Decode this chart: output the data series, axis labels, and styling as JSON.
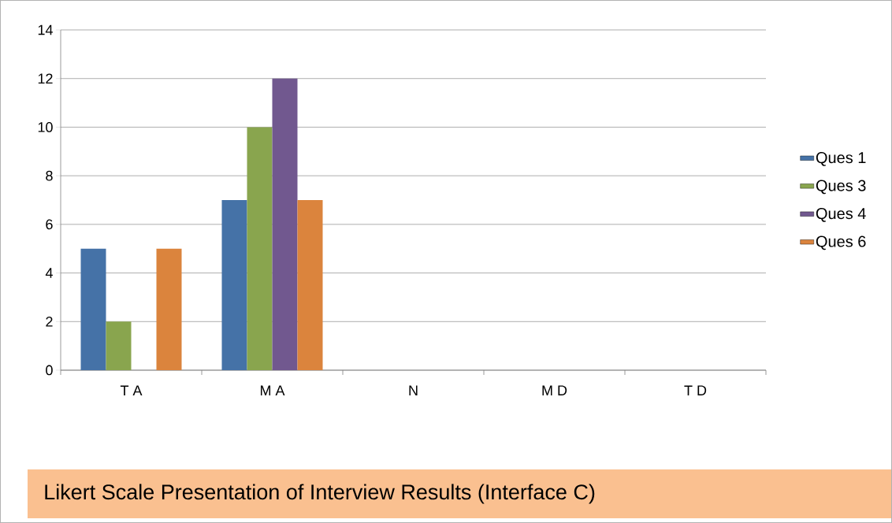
{
  "chart_data": {
    "type": "bar",
    "title": "Likert Scale Presentation of Interview Results (Interface C)",
    "categories": [
      "T A",
      "M A",
      "N",
      "M D",
      "T D"
    ],
    "series": [
      {
        "name": "Ques 1",
        "color": "#4572a7",
        "values": [
          5,
          7,
          0,
          0,
          0
        ]
      },
      {
        "name": "Ques 3",
        "color": "#89a54e",
        "values": [
          2,
          10,
          0,
          0,
          0
        ]
      },
      {
        "name": "Ques 4",
        "color": "#71588f",
        "values": [
          0,
          12,
          0,
          0,
          0
        ]
      },
      {
        "name": "Ques 6",
        "color": "#db843d",
        "values": [
          5,
          7,
          0,
          0,
          0
        ]
      }
    ],
    "ylim": [
      0,
      14
    ],
    "yticks": [
      0,
      2,
      4,
      6,
      8,
      10,
      12,
      14
    ],
    "grid": "y",
    "legend": "right"
  }
}
